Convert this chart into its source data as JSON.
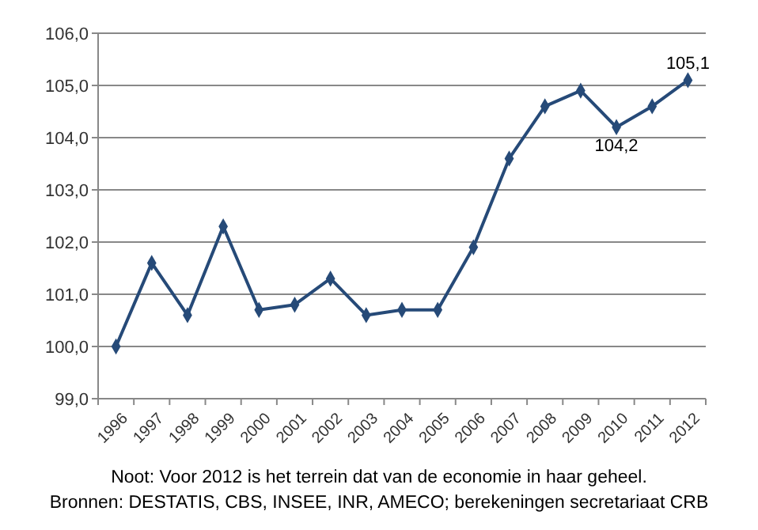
{
  "chart_data": {
    "type": "line",
    "categories": [
      "1996",
      "1997",
      "1998",
      "1999",
      "2000",
      "2001",
      "2002",
      "2003",
      "2004",
      "2005",
      "2006",
      "2007",
      "2008",
      "2009",
      "2010",
      "2011",
      "2012"
    ],
    "series": [
      {
        "color": "#264a78",
        "values": [
          100.0,
          101.6,
          100.6,
          102.3,
          100.7,
          100.8,
          101.3,
          100.6,
          100.7,
          100.7,
          101.9,
          103.6,
          104.6,
          104.9,
          104.2,
          104.6,
          105.1
        ],
        "value_labels": [
          null,
          null,
          null,
          null,
          null,
          null,
          null,
          null,
          null,
          null,
          null,
          null,
          null,
          null,
          "104,2",
          null,
          "105,1"
        ]
      }
    ],
    "ylim": [
      99,
      106
    ],
    "yticks": [
      {
        "value": 99,
        "label": "99,0"
      },
      {
        "value": 100,
        "label": "100,0"
      },
      {
        "value": 101,
        "label": "101,0"
      },
      {
        "value": 102,
        "label": "102,0"
      },
      {
        "value": 103,
        "label": "103,0"
      },
      {
        "value": 104,
        "label": "104,0"
      },
      {
        "value": 105,
        "label": "105,0"
      },
      {
        "value": 106,
        "label": "106,0"
      }
    ],
    "grid": "y",
    "marker": "diamond",
    "line_style": "solid",
    "annotations": [
      "Noot: Voor 2012 is het terrein dat van de economie in haar geheel.",
      "Bronnen: DESTATIS, CBS, INSEE, INR, AMECO; berekeningen secretariaat CRB"
    ]
  }
}
